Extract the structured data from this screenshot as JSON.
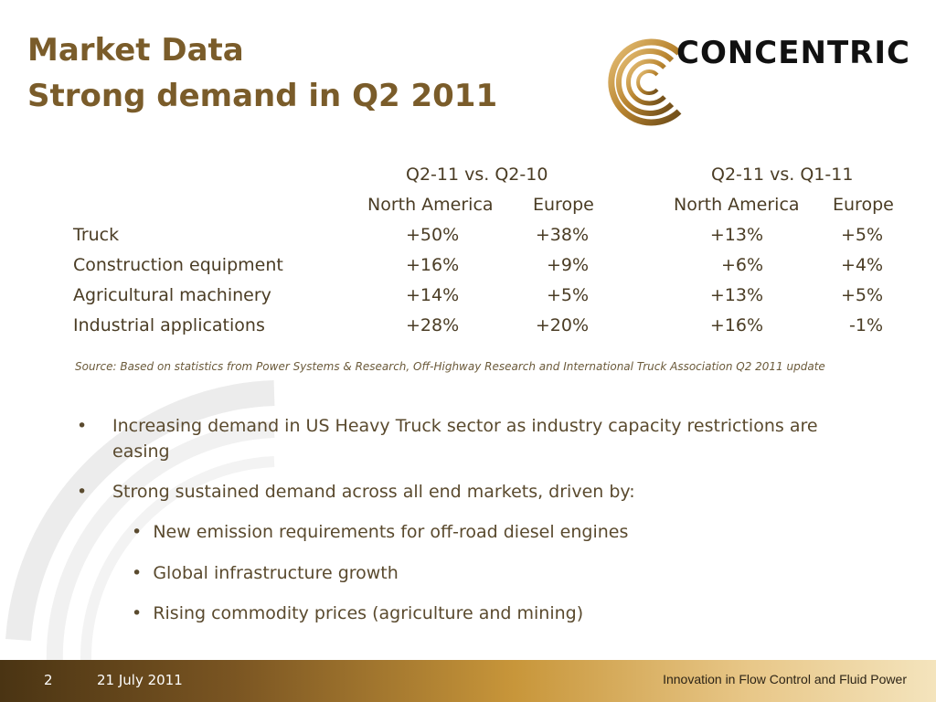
{
  "title": {
    "line1": "Market Data",
    "line2": "Strong demand in Q2 2011"
  },
  "logo": {
    "text": "CONCENTRIC",
    "icon": "concentric-rings-icon"
  },
  "table": {
    "group1_header": "Q2-11  vs.  Q2-10",
    "group2_header": "Q2-11  vs.  Q1-11",
    "col_na": "North America",
    "col_eu": "Europe",
    "rows": [
      {
        "label": "Truck",
        "v1": "+50%",
        "v2": "+38%",
        "v3": "+13%",
        "v4": "+5%"
      },
      {
        "label": "Construction equipment",
        "v1": "+16%",
        "v2": "+9%",
        "v3": "+6%",
        "v4": "+4%"
      },
      {
        "label": "Agricultural machinery",
        "v1": "+14%",
        "v2": "+5%",
        "v3": "+13%",
        "v4": "+5%"
      },
      {
        "label": "Industrial applications",
        "v1": "+28%",
        "v2": "+20%",
        "v3": "+16%",
        "v4": "-1%"
      }
    ]
  },
  "source": "Source: Based on statistics from Power Systems & Research, Off-Highway Research and International Truck Association Q2 2011 update",
  "bullets": {
    "b1": "Increasing demand in US Heavy Truck sector as industry capacity restrictions are easing",
    "b2": "Strong sustained demand across all end markets, driven by:",
    "subs": [
      "New emission requirements for off-road diesel engines",
      "Global infrastructure growth",
      "Rising commodity prices (agriculture and mining)"
    ],
    "dot": "•"
  },
  "footer": {
    "page": "2",
    "date": "21 July 2011",
    "tagline": "Innovation in Flow Control and Fluid Power"
  },
  "colors": {
    "title": "#7a5c2a",
    "accent": "#c8963a",
    "text": "#5a4a2e"
  }
}
